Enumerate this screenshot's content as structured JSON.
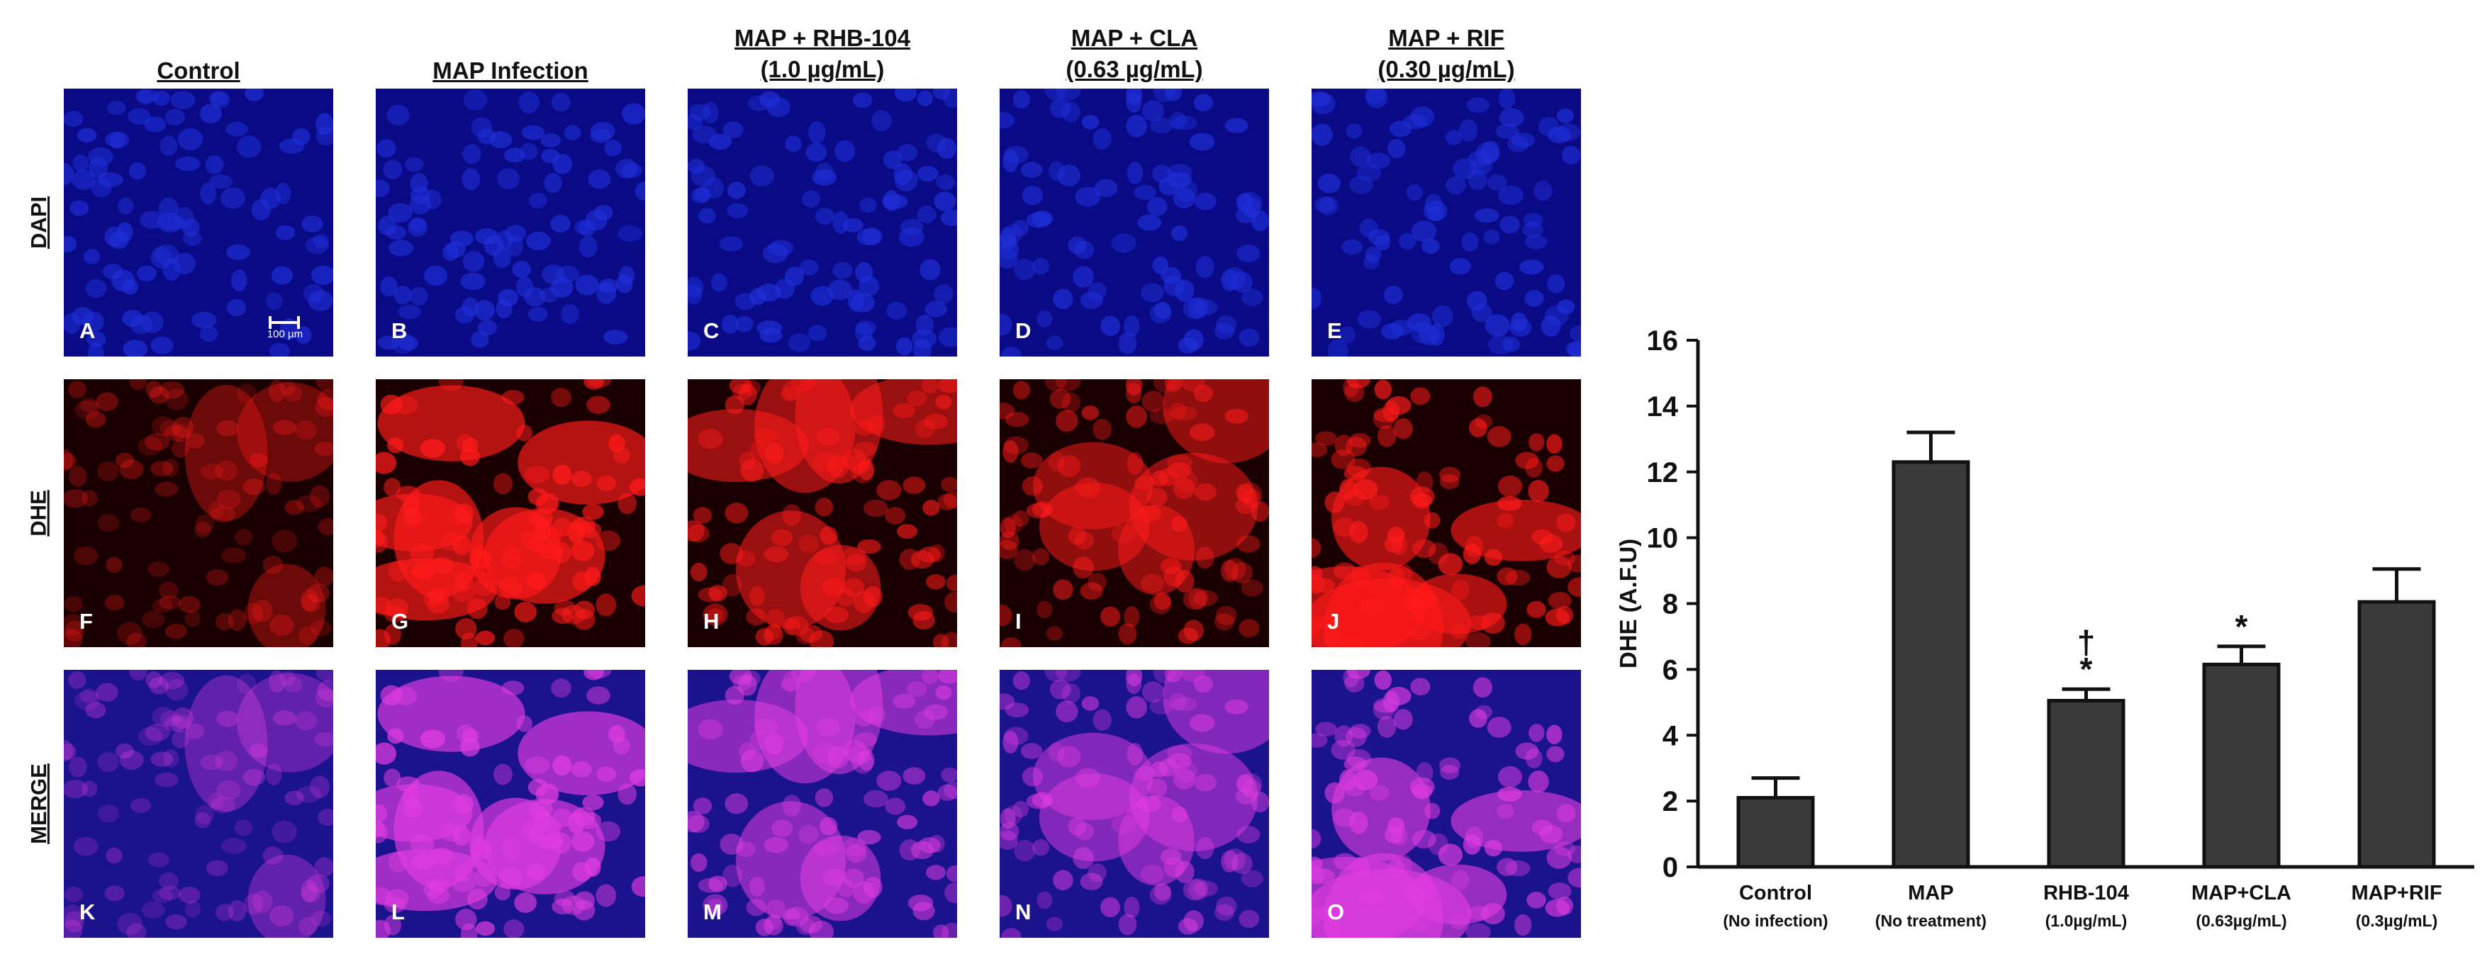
{
  "columns": [
    {
      "line1": "Control",
      "line2": ""
    },
    {
      "line1": "MAP Infection",
      "line2": ""
    },
    {
      "line1": "MAP + RHB-104",
      "line2": "(1.0 µg/mL)"
    },
    {
      "line1": "MAP + CLA",
      "line2": "(0.63 µg/mL)"
    },
    {
      "line1": "MAP + RIF",
      "line2": "(0.30 µg/mL)"
    }
  ],
  "rows": [
    "DAPI",
    "DHE",
    "MERGE"
  ],
  "panel_letters": [
    "A",
    "B",
    "C",
    "D",
    "E",
    "F",
    "G",
    "H",
    "I",
    "J",
    "K",
    "L",
    "M",
    "N",
    "O"
  ],
  "scale_bar": "100 µm",
  "colors": {
    "dapi_bg": "#0a0a86",
    "dapi_cell": "#1f2fd8",
    "dhe_bg": "#1a0000",
    "dhe_cell": "#ff1a1a",
    "merge_bg": "#1b128e",
    "merge_cell": "#e03ce0",
    "bar_fill": "#3a3a3a"
  },
  "dhe_intensity": [
    0.25,
    0.95,
    0.7,
    0.6,
    0.85
  ],
  "chart_data": {
    "type": "bar",
    "ylabel": "DHE (A.F.U)",
    "ylim": [
      0,
      16
    ],
    "yticks": [
      0,
      2,
      4,
      6,
      8,
      10,
      12,
      14,
      16
    ],
    "ytick_labels": [
      "0",
      "2",
      "4",
      "6",
      "8",
      "10",
      "12",
      "14",
      "16"
    ],
    "categories": [
      {
        "name": "Control",
        "sub": "(No infection)"
      },
      {
        "name": "MAP",
        "sub": "(No treatment)"
      },
      {
        "name": "RHB-104",
        "sub": "(1.0µg/mL)"
      },
      {
        "name": "MAP+CLA",
        "sub": "(0.63µg/mL)"
      },
      {
        "name": "MAP+RIF",
        "sub": "(0.3µg/mL)"
      }
    ],
    "values": [
      2.1,
      12.3,
      5.05,
      6.15,
      8.05
    ],
    "errors": [
      0.6,
      0.9,
      0.35,
      0.55,
      1.0
    ],
    "annotations": [
      "",
      "",
      "†\n*",
      "*",
      ""
    ]
  }
}
